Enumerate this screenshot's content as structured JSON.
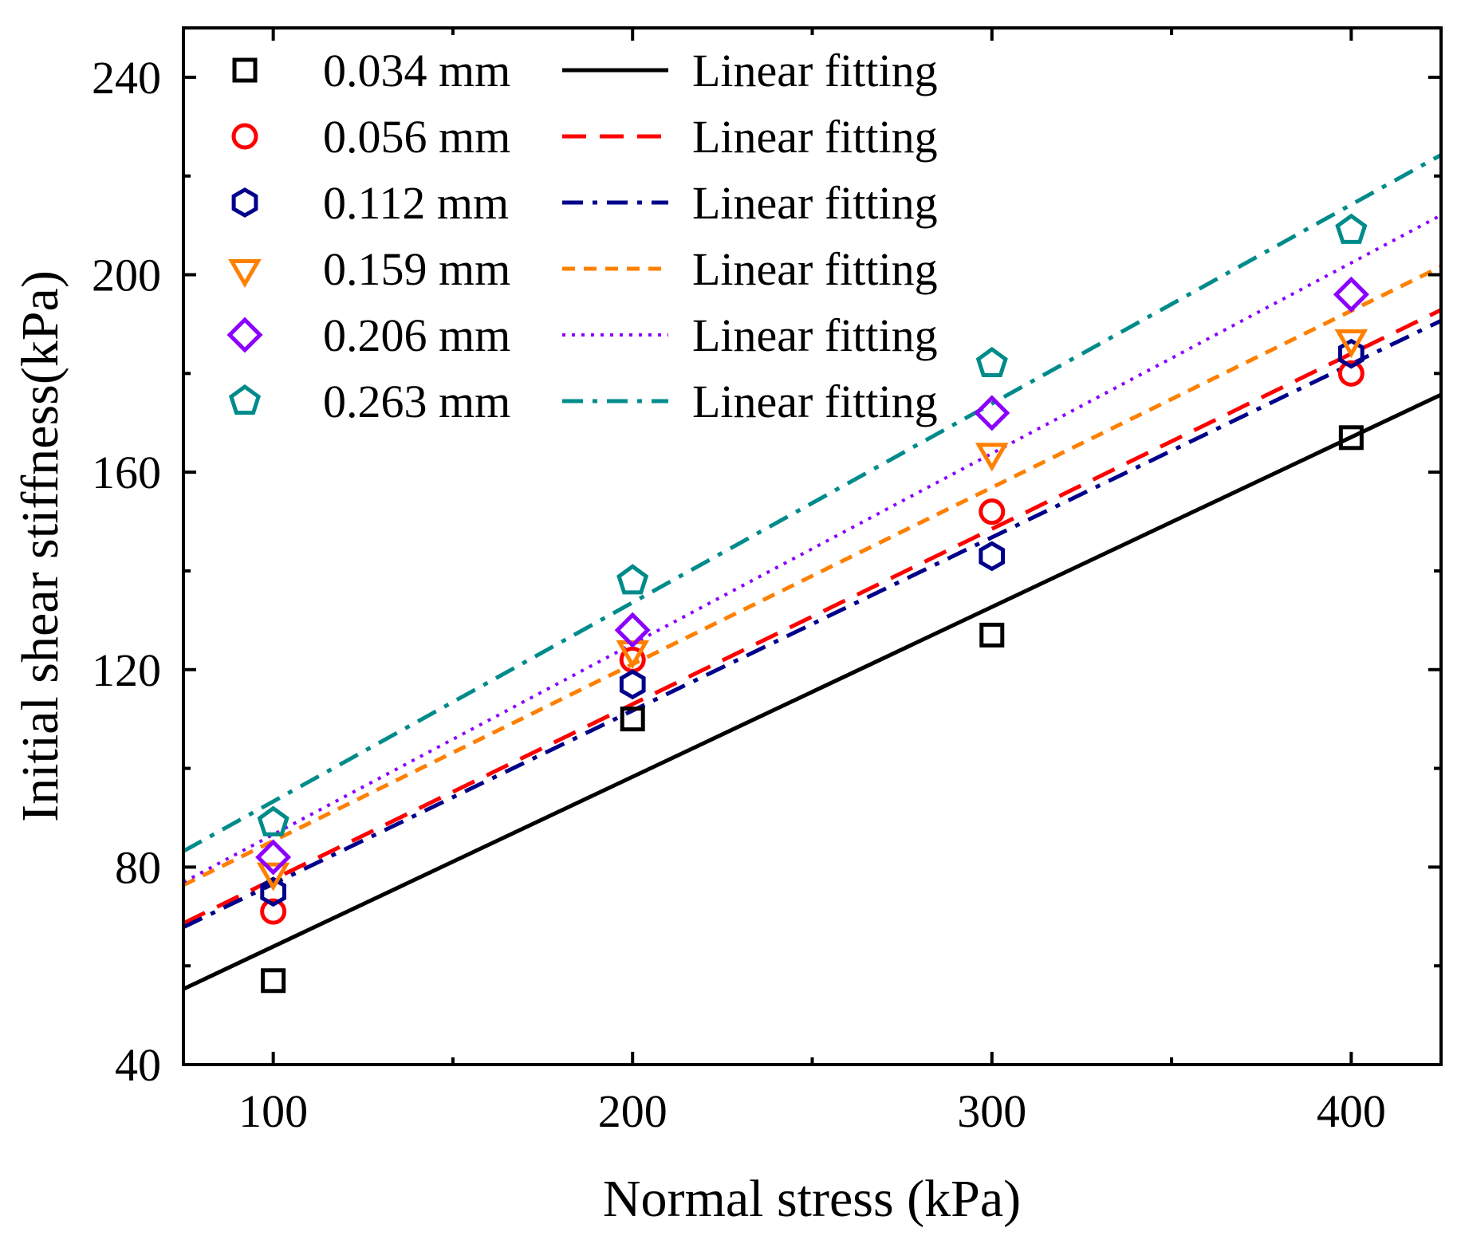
{
  "chart_data": {
    "type": "scatter",
    "title": "",
    "xlabel": "Normal stress (kPa)",
    "ylabel": "Initial shear stiffness(kPa)",
    "xlim": [
      75,
      425
    ],
    "ylim": [
      40,
      250
    ],
    "xticks": [
      100,
      200,
      300,
      400
    ],
    "xtick_labels": [
      "100",
      "200",
      "300",
      "400"
    ],
    "yticks": [
      40,
      80,
      120,
      160,
      200,
      240
    ],
    "ytick_labels": [
      "40",
      "80",
      "120",
      "160",
      "200",
      "240"
    ],
    "grid": false,
    "legend_position": "top-left",
    "fit_label": "Linear fitting",
    "series": [
      {
        "name": "0.034 mm",
        "marker": "square",
        "color": "#000000",
        "line_style": "solid",
        "x": [
          100,
          200,
          300,
          400
        ],
        "y": [
          57,
          110,
          127,
          167
        ],
        "fit": {
          "slope": 0.344,
          "intercept": 29.5
        }
      },
      {
        "name": "0.056 mm",
        "marker": "circle",
        "color": "#ff0000",
        "line_style": "dash",
        "x": [
          100,
          200,
          300,
          400
        ],
        "y": [
          71,
          122,
          152,
          180
        ],
        "fit": {
          "slope": 0.355,
          "intercept": 42.0
        }
      },
      {
        "name": "0.112 mm",
        "marker": "hexagon",
        "color": "#00008b",
        "line_style": "dashdot",
        "x": [
          100,
          200,
          300,
          400
        ],
        "y": [
          75,
          117,
          143,
          184
        ],
        "fit": {
          "slope": 0.351,
          "intercept": 41.5
        }
      },
      {
        "name": "0.159 mm",
        "marker": "triangle-down",
        "color": "#ff8000",
        "line_style": "shortdash",
        "x": [
          100,
          200,
          300,
          400
        ],
        "y": [
          79,
          124,
          164,
          187
        ],
        "fit": {
          "slope": 0.358,
          "intercept": 49.5
        }
      },
      {
        "name": "0.206 mm",
        "marker": "diamond",
        "color": "#8b00ff",
        "line_style": "dot",
        "x": [
          100,
          200,
          300,
          400
        ],
        "y": [
          82,
          128,
          172,
          196
        ],
        "fit": {
          "slope": 0.386,
          "intercept": 48.0
        }
      },
      {
        "name": "0.263 mm",
        "marker": "pentagon",
        "color": "#008b8b",
        "line_style": "dashdot",
        "x": [
          100,
          200,
          300,
          400
        ],
        "y": [
          89,
          138,
          182,
          209
        ],
        "fit": {
          "slope": 0.403,
          "intercept": 53.0
        }
      }
    ]
  }
}
